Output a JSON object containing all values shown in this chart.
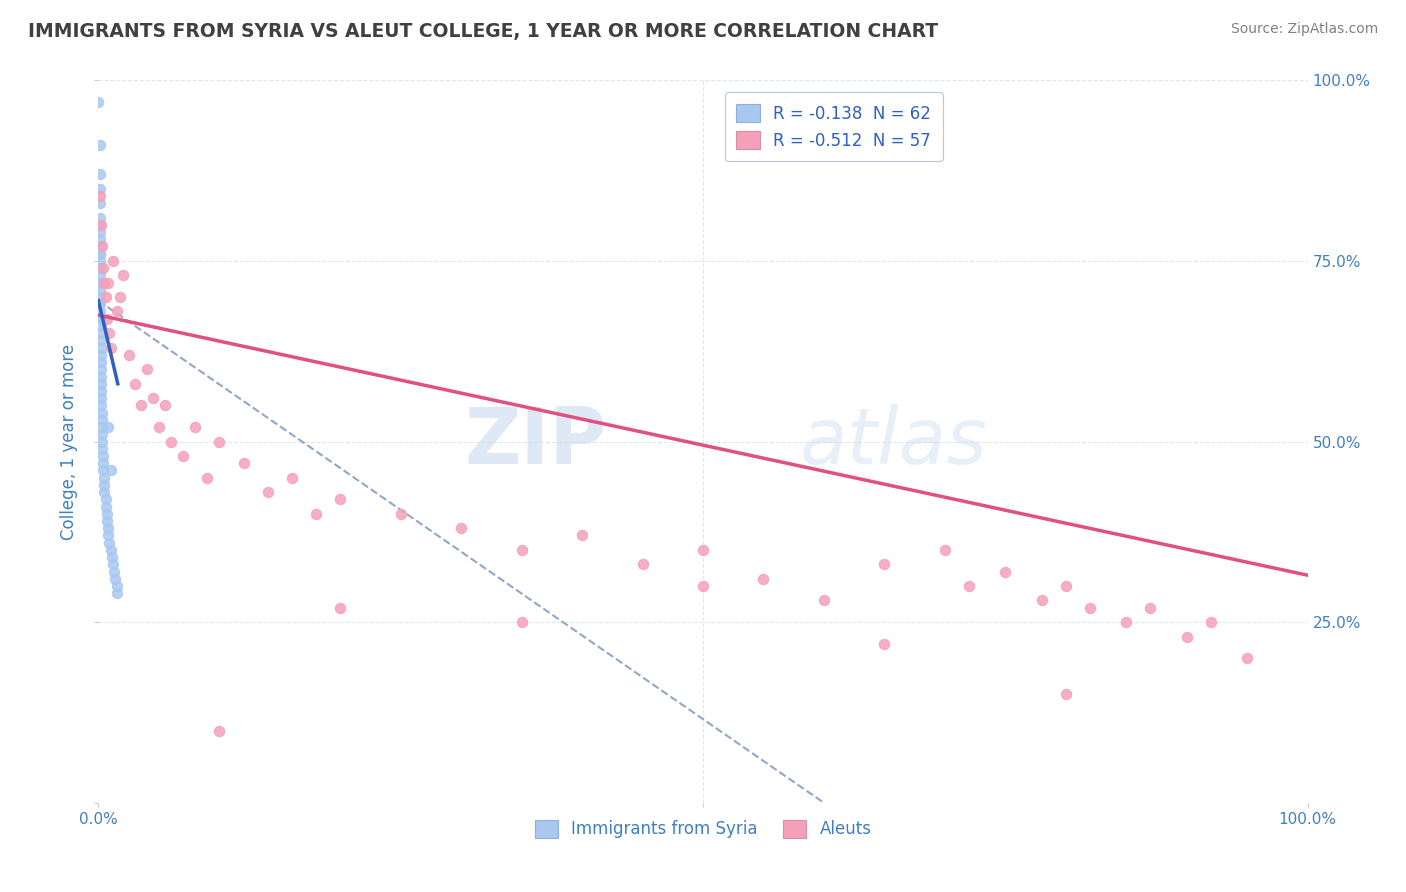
{
  "title": "IMMIGRANTS FROM SYRIA VS ALEUT COLLEGE, 1 YEAR OR MORE CORRELATION CHART",
  "source_text": "Source: ZipAtlas.com",
  "ylabel": "College, 1 year or more",
  "xlim": [
    0,
    1.0
  ],
  "ylim": [
    0,
    1.0
  ],
  "watermark": "ZIPatlas",
  "legend_r1": "R = -0.138  N = 62",
  "legend_r2": "R = -0.512  N = 57",
  "legend_label1": "Immigrants from Syria",
  "legend_label2": "Aleuts",
  "blue_color": "#a8c8f0",
  "pink_color": "#f5a0b8",
  "blue_line_color": "#3060c0",
  "pink_line_color": "#e05080",
  "dashed_line_color": "#90a8c8",
  "title_color": "#404040",
  "source_color": "#808080",
  "axis_label_color": "#4080c0",
  "grid_color": "#dde8f0",
  "background_color": "#ffffff",
  "syria_x": [
    0.0,
    0.001,
    0.001,
    0.001,
    0.001,
    0.001,
    0.001,
    0.001,
    0.001,
    0.001,
    0.001,
    0.001,
    0.001,
    0.001,
    0.001,
    0.001,
    0.001,
    0.001,
    0.001,
    0.001,
    0.001,
    0.001,
    0.002,
    0.002,
    0.002,
    0.002,
    0.002,
    0.002,
    0.002,
    0.002,
    0.002,
    0.002,
    0.002,
    0.002,
    0.003,
    0.003,
    0.003,
    0.003,
    0.003,
    0.003,
    0.004,
    0.004,
    0.004,
    0.005,
    0.005,
    0.005,
    0.006,
    0.006,
    0.007,
    0.007,
    0.008,
    0.008,
    0.009,
    0.01,
    0.011,
    0.012,
    0.013,
    0.014,
    0.015,
    0.015,
    0.01,
    0.008
  ],
  "syria_y": [
    0.97,
    0.91,
    0.87,
    0.85,
    0.83,
    0.81,
    0.8,
    0.79,
    0.78,
    0.77,
    0.76,
    0.76,
    0.75,
    0.74,
    0.73,
    0.72,
    0.71,
    0.7,
    0.69,
    0.68,
    0.67,
    0.67,
    0.66,
    0.65,
    0.64,
    0.63,
    0.62,
    0.61,
    0.6,
    0.59,
    0.58,
    0.57,
    0.56,
    0.55,
    0.54,
    0.53,
    0.52,
    0.51,
    0.5,
    0.49,
    0.48,
    0.47,
    0.46,
    0.45,
    0.44,
    0.43,
    0.42,
    0.41,
    0.4,
    0.39,
    0.38,
    0.37,
    0.36,
    0.35,
    0.34,
    0.33,
    0.32,
    0.31,
    0.3,
    0.29,
    0.46,
    0.52
  ],
  "aleut_x": [
    0.001,
    0.002,
    0.003,
    0.004,
    0.005,
    0.006,
    0.007,
    0.008,
    0.009,
    0.01,
    0.012,
    0.015,
    0.018,
    0.02,
    0.025,
    0.03,
    0.035,
    0.04,
    0.045,
    0.05,
    0.055,
    0.06,
    0.07,
    0.08,
    0.09,
    0.1,
    0.12,
    0.14,
    0.16,
    0.18,
    0.2,
    0.25,
    0.3,
    0.35,
    0.4,
    0.45,
    0.5,
    0.55,
    0.6,
    0.65,
    0.7,
    0.72,
    0.75,
    0.78,
    0.8,
    0.82,
    0.85,
    0.87,
    0.9,
    0.92,
    0.95,
    0.8,
    0.65,
    0.5,
    0.35,
    0.2,
    0.1
  ],
  "aleut_y": [
    0.84,
    0.8,
    0.77,
    0.74,
    0.72,
    0.7,
    0.67,
    0.72,
    0.65,
    0.63,
    0.75,
    0.68,
    0.7,
    0.73,
    0.62,
    0.58,
    0.55,
    0.6,
    0.56,
    0.52,
    0.55,
    0.5,
    0.48,
    0.52,
    0.45,
    0.5,
    0.47,
    0.43,
    0.45,
    0.4,
    0.42,
    0.4,
    0.38,
    0.35,
    0.37,
    0.33,
    0.35,
    0.31,
    0.28,
    0.33,
    0.35,
    0.3,
    0.32,
    0.28,
    0.3,
    0.27,
    0.25,
    0.27,
    0.23,
    0.25,
    0.2,
    0.15,
    0.22,
    0.3,
    0.25,
    0.27,
    0.1
  ],
  "syria_line_x0": 0.0,
  "syria_line_x1": 0.016,
  "syria_line_y0": 0.695,
  "syria_line_y1": 0.58,
  "dash_line_x0": 0.0,
  "dash_line_x1": 0.6,
  "dash_line_y0": 0.695,
  "dash_line_y1": 0.0,
  "aleut_line_x0": 0.0,
  "aleut_line_x1": 1.0,
  "aleut_line_y0": 0.675,
  "aleut_line_y1": 0.315
}
